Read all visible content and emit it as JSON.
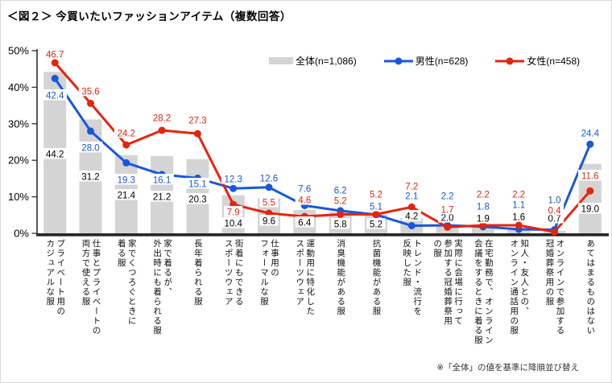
{
  "title": "＜図２＞ 今買いたいファッションアイテム（複数回答）",
  "legend": {
    "total": "全体(n=1,086)",
    "male": "男性(n=628)",
    "female": "女性(n=458)"
  },
  "footnote": "※「全体」の値を基準に降順並び替え",
  "colors": {
    "total_bar": "#d4d4d4",
    "male_line": "#1857dd",
    "female_line": "#e8230c",
    "axis": "#303030",
    "total_label": "#000000"
  },
  "chart_data": {
    "type": "combo",
    "title": "＜図２＞ 今買いたいファッションアイテム（複数回答）",
    "y_axis": {
      "min": 0,
      "max": 50,
      "tick_step": 10,
      "ticks": [
        "0%",
        "10%",
        "20%",
        "30%",
        "40%",
        "50%"
      ]
    },
    "grid": false,
    "legend_position": "top",
    "categories": [
      [
        "プライベート用の",
        "カジュアルな服"
      ],
      [
        "仕事とプライベートの",
        "両方で使える服"
      ],
      [
        "家でくつろぐときに",
        "着る服"
      ],
      [
        "家で着るが、",
        "外出時にも着られる服"
      ],
      [
        "長年着られる服"
      ],
      [
        "街着にもできる",
        "スポーツウェア"
      ],
      [
        "仕事用の",
        "フォーマルな服"
      ],
      [
        "運動用に特化した",
        "スポーツウェア"
      ],
      [
        "消臭機能がある服"
      ],
      [
        "抗菌機能がある服"
      ],
      [
        "トレンド・流行を",
        "反映した服"
      ],
      [
        "実際に会場に行って",
        "参加する冠婚葬祭用",
        "の服"
      ],
      [
        "在宅勤務で、オンライン",
        "会議をするときに着る服"
      ],
      [
        "知人・友人との、",
        "オンライン通話用の服"
      ],
      [
        "オンラインで参加する",
        "冠婚葬祭用の服"
      ],
      [
        "あてはまるものはない"
      ]
    ],
    "series": [
      {
        "key": "total",
        "name": "全体(n=1,086)",
        "type": "bar",
        "color": "#d4d4d4",
        "values": [
          44.2,
          31.2,
          21.4,
          21.2,
          20.3,
          10.4,
          9.6,
          6.4,
          5.8,
          5.2,
          4.2,
          2.0,
          1.9,
          1.6,
          0.7,
          19.0
        ]
      },
      {
        "key": "male",
        "name": "男性(n=628)",
        "type": "line",
        "color": "#1857dd",
        "values": [
          42.4,
          28.0,
          19.3,
          16.1,
          15.1,
          12.3,
          12.6,
          7.6,
          6.2,
          5.1,
          2.1,
          2.2,
          1.8,
          1.1,
          1.0,
          24.4
        ]
      },
      {
        "key": "female",
        "name": "女性(n=458)",
        "type": "line",
        "color": "#e8230c",
        "values": [
          46.7,
          35.6,
          24.2,
          28.2,
          27.3,
          7.9,
          5.5,
          4.6,
          5.2,
          5.2,
          7.2,
          1.7,
          2.2,
          2.2,
          0.4,
          11.6
        ]
      }
    ]
  }
}
